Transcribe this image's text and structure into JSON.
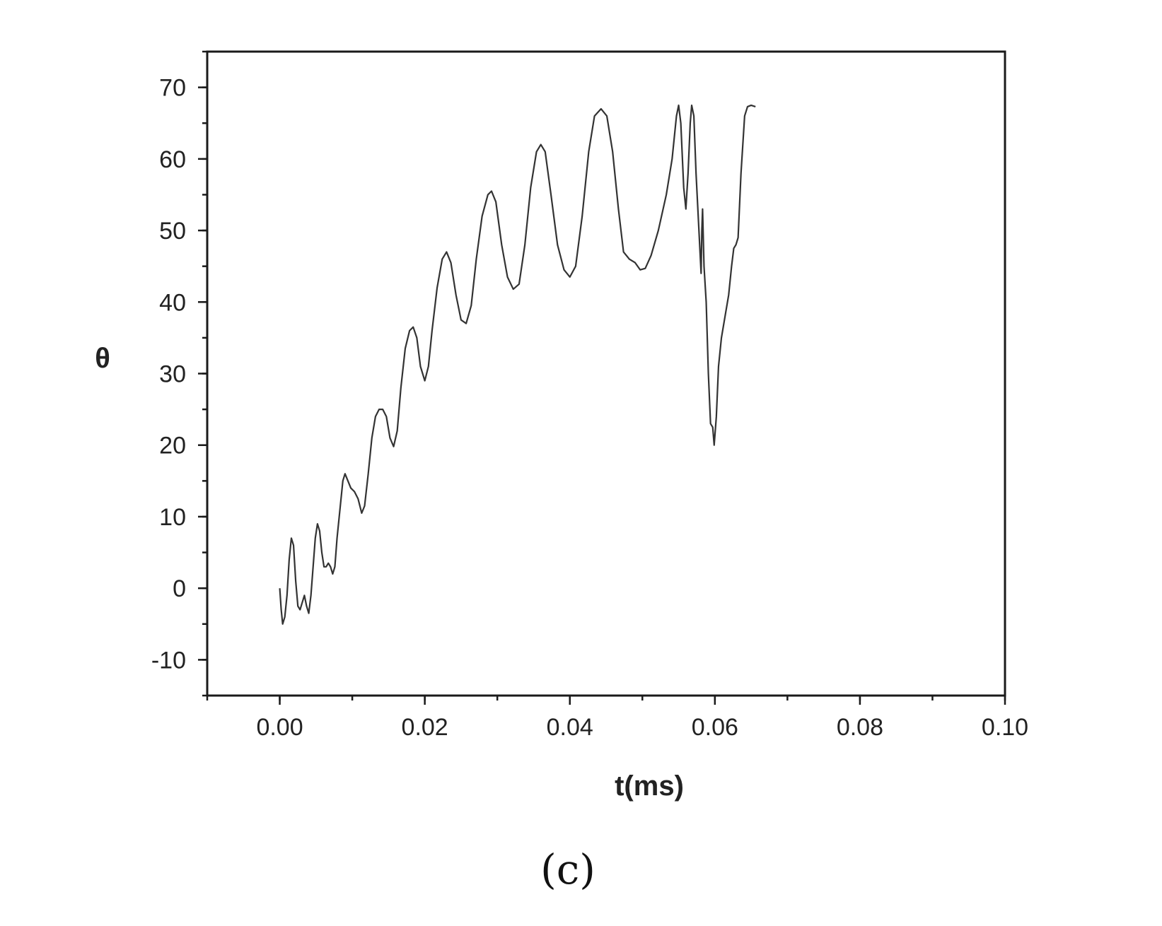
{
  "chart_data": {
    "type": "line",
    "xlabel": "t(ms)",
    "ylabel": "θ",
    "panel_label": "(c)",
    "xlim": [
      -0.01,
      0.1
    ],
    "ylim": [
      -15,
      75
    ],
    "x_ticks": [
      0.0,
      0.02,
      0.04,
      0.06,
      0.08,
      0.1
    ],
    "x_tick_labels": [
      "0.00",
      "0.02",
      "0.04",
      "0.06",
      "0.08",
      "0.10"
    ],
    "y_ticks": [
      -10,
      0,
      10,
      20,
      30,
      40,
      50,
      60,
      70
    ],
    "y_tick_labels": [
      "-10",
      "0",
      "10",
      "20",
      "30",
      "40",
      "50",
      "60",
      "70"
    ],
    "x_minor_step": 0.01,
    "y_minor_step": 5,
    "grid": false,
    "line_color": "#333333",
    "series": [
      {
        "points": [
          [
            0.0,
            0.0
          ],
          [
            0.0002,
            -3.0
          ],
          [
            0.0004,
            -5.0
          ],
          [
            0.0007,
            -4.0
          ],
          [
            0.001,
            -1.0
          ],
          [
            0.0013,
            4.0
          ],
          [
            0.0016,
            7.0
          ],
          [
            0.0019,
            6.0
          ],
          [
            0.0022,
            1.0
          ],
          [
            0.0025,
            -2.5
          ],
          [
            0.0028,
            -3.0
          ],
          [
            0.0031,
            -2.0
          ],
          [
            0.0034,
            -1.0
          ],
          [
            0.0037,
            -2.5
          ],
          [
            0.004,
            -3.5
          ],
          [
            0.0043,
            -1.0
          ],
          [
            0.0046,
            3.0
          ],
          [
            0.0049,
            7.0
          ],
          [
            0.0052,
            9.0
          ],
          [
            0.0055,
            8.0
          ],
          [
            0.0058,
            5.0
          ],
          [
            0.0061,
            3.0
          ],
          [
            0.0064,
            3.0
          ],
          [
            0.0067,
            3.5
          ],
          [
            0.007,
            3.0
          ],
          [
            0.0073,
            2.0
          ],
          [
            0.0076,
            3.0
          ],
          [
            0.0079,
            7.0
          ],
          [
            0.0083,
            11.0
          ],
          [
            0.0087,
            15.0
          ],
          [
            0.009,
            16.0
          ],
          [
            0.0094,
            15.0
          ],
          [
            0.0098,
            14.0
          ],
          [
            0.0103,
            13.5
          ],
          [
            0.0108,
            12.5
          ],
          [
            0.0113,
            10.5
          ],
          [
            0.0117,
            11.5
          ],
          [
            0.0122,
            16.0
          ],
          [
            0.0127,
            21.0
          ],
          [
            0.0132,
            24.0
          ],
          [
            0.0137,
            25.0
          ],
          [
            0.0142,
            25.0
          ],
          [
            0.0147,
            24.0
          ],
          [
            0.0152,
            21.0
          ],
          [
            0.0157,
            19.8
          ],
          [
            0.0162,
            22.0
          ],
          [
            0.0167,
            28.0
          ],
          [
            0.0173,
            33.5
          ],
          [
            0.0179,
            36.0
          ],
          [
            0.0184,
            36.5
          ],
          [
            0.0189,
            35.0
          ],
          [
            0.0194,
            31.0
          ],
          [
            0.02,
            29.0
          ],
          [
            0.0205,
            31.0
          ],
          [
            0.021,
            36.0
          ],
          [
            0.0217,
            42.0
          ],
          [
            0.0224,
            46.0
          ],
          [
            0.023,
            47.0
          ],
          [
            0.0236,
            45.5
          ],
          [
            0.0243,
            41.0
          ],
          [
            0.025,
            37.5
          ],
          [
            0.0257,
            37.0
          ],
          [
            0.0264,
            39.5
          ],
          [
            0.0271,
            46.0
          ],
          [
            0.0279,
            52.0
          ],
          [
            0.0287,
            55.0
          ],
          [
            0.0292,
            55.5
          ],
          [
            0.0298,
            54.0
          ],
          [
            0.0306,
            48.0
          ],
          [
            0.0314,
            43.5
          ],
          [
            0.0322,
            41.8
          ],
          [
            0.033,
            42.5
          ],
          [
            0.0338,
            48.0
          ],
          [
            0.0346,
            56.0
          ],
          [
            0.0354,
            61.0
          ],
          [
            0.036,
            62.0
          ],
          [
            0.0366,
            61.0
          ],
          [
            0.0374,
            55.0
          ],
          [
            0.0383,
            48.0
          ],
          [
            0.0392,
            44.5
          ],
          [
            0.04,
            43.5
          ],
          [
            0.0408,
            45.0
          ],
          [
            0.0417,
            52.0
          ],
          [
            0.0426,
            61.0
          ],
          [
            0.0434,
            66.0
          ],
          [
            0.0443,
            67.0
          ],
          [
            0.0451,
            66.0
          ],
          [
            0.0459,
            61.0
          ],
          [
            0.0467,
            53.0
          ],
          [
            0.0474,
            47.0
          ],
          [
            0.0482,
            46.0
          ],
          [
            0.049,
            45.5
          ],
          [
            0.0497,
            44.5
          ],
          [
            0.0504,
            44.7
          ],
          [
            0.0512,
            46.5
          ],
          [
            0.0522,
            50.0
          ],
          [
            0.0533,
            55.0
          ],
          [
            0.0541,
            60.0
          ],
          [
            0.0547,
            66.0
          ],
          [
            0.055,
            67.5
          ],
          [
            0.0553,
            65.0
          ],
          [
            0.0557,
            56.0
          ],
          [
            0.056,
            53.0
          ],
          [
            0.0563,
            58.0
          ],
          [
            0.0566,
            65.0
          ],
          [
            0.0568,
            67.5
          ],
          [
            0.0571,
            66.0
          ],
          [
            0.0574,
            58.0
          ],
          [
            0.0578,
            50.0
          ],
          [
            0.0581,
            44.0
          ],
          [
            0.0582,
            50.0
          ],
          [
            0.0583,
            53.0
          ],
          [
            0.0585,
            45.0
          ],
          [
            0.0588,
            40.0
          ],
          [
            0.0591,
            30.0
          ],
          [
            0.0594,
            23.0
          ],
          [
            0.0597,
            22.5
          ],
          [
            0.0599,
            20.0
          ],
          [
            0.0602,
            24.0
          ],
          [
            0.0605,
            31.0
          ],
          [
            0.0609,
            35.0
          ],
          [
            0.0614,
            38.0
          ],
          [
            0.0619,
            41.0
          ],
          [
            0.0623,
            45.0
          ],
          [
            0.0626,
            47.5
          ],
          [
            0.0629,
            48.0
          ],
          [
            0.0632,
            49.0
          ],
          [
            0.0636,
            58.0
          ],
          [
            0.0641,
            66.0
          ],
          [
            0.0645,
            67.3
          ],
          [
            0.065,
            67.5
          ],
          [
            0.0656,
            67.3
          ]
        ]
      }
    ]
  }
}
